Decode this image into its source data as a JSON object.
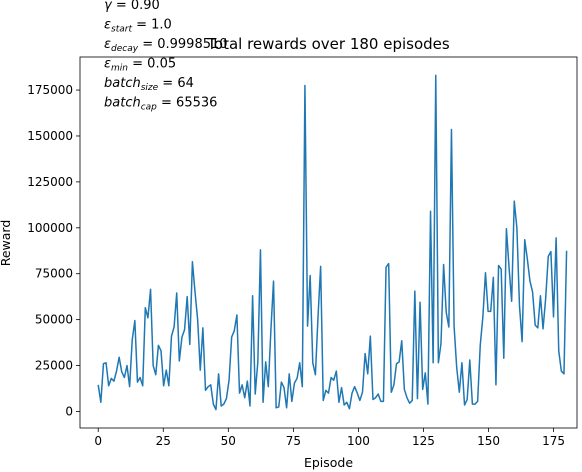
{
  "chart_data": {
    "type": "line",
    "title": "Total rewards over 180 episodes",
    "xlabel": "Episode",
    "ylabel": "Reward",
    "xlim": [
      -7,
      184
    ],
    "ylim": [
      -9000,
      193000
    ],
    "xticks": [
      0,
      25,
      50,
      75,
      100,
      125,
      150,
      175
    ],
    "yticks": [
      0,
      25000,
      50000,
      75000,
      100000,
      125000,
      150000,
      175000
    ],
    "grid": false,
    "line_color": "#1f77b4",
    "annotations": [
      {
        "base": "γ",
        "sub": "",
        "value": " = 0.90"
      },
      {
        "base": "ε",
        "sub": "start",
        "value": " = 1.0"
      },
      {
        "base": "ε",
        "sub": "decay",
        "value": " = 0.9998510"
      },
      {
        "base": "ε",
        "sub": "min",
        "value": " = 0.05"
      },
      {
        "base": "batch",
        "sub": "size",
        "value": " = 64"
      },
      {
        "base": "batch",
        "sub": "cap",
        "value": " = 65536"
      }
    ],
    "series": [
      {
        "values": [
          14500,
          5000,
          26000,
          26500,
          14000,
          18000,
          16500,
          22000,
          29500,
          21500,
          18500,
          25000,
          13500,
          39000,
          49500,
          16000,
          18500,
          14000,
          56500,
          51000,
          66500,
          25000,
          20000,
          36000,
          33000,
          14000,
          22500,
          14000,
          41000,
          46000,
          64500,
          27500,
          40500,
          44500,
          62500,
          36500,
          81500,
          65000,
          50000,
          22500,
          45500,
          11500,
          13500,
          14500,
          4000,
          1000,
          20500,
          3000,
          4000,
          7000,
          17000,
          40500,
          44000,
          52500,
          10000,
          14500,
          7500,
          16500,
          3000,
          63000,
          9500,
          27000,
          88000,
          5000,
          27000,
          13500,
          44500,
          71000,
          2000,
          2500,
          16000,
          13000,
          2000,
          20500,
          5500,
          15500,
          18000,
          26500,
          13500,
          177500,
          46500,
          74000,
          26500,
          20000,
          51500,
          79000,
          6000,
          11500,
          10000,
          18500,
          17000,
          22000,
          5000,
          13000,
          3500,
          5000,
          1500,
          10000,
          13500,
          10000,
          6000,
          10500,
          31500,
          20500,
          41000,
          6500,
          7500,
          9500,
          5500,
          5500,
          78500,
          80500,
          10500,
          14500,
          26000,
          27000,
          38500,
          12000,
          7500,
          4500,
          6000,
          65500,
          7000,
          59500,
          12000,
          21000,
          4000,
          109000,
          26500,
          183000,
          26500,
          37000,
          80000,
          54000,
          46000,
          153500,
          46500,
          24000,
          10500,
          26500,
          3500,
          6500,
          28000,
          4000,
          4000,
          5500,
          36000,
          51500,
          75500,
          54500,
          54500,
          73000,
          14500,
          79500,
          77500,
          29000,
          99500,
          78500,
          60000,
          114500,
          100000,
          57500,
          38000,
          93500,
          83000,
          71000,
          65000,
          47000,
          45500,
          63000,
          45000,
          61500,
          84500,
          87000,
          51500,
          94500,
          33000,
          22000,
          20500,
          87500
        ]
      }
    ]
  }
}
